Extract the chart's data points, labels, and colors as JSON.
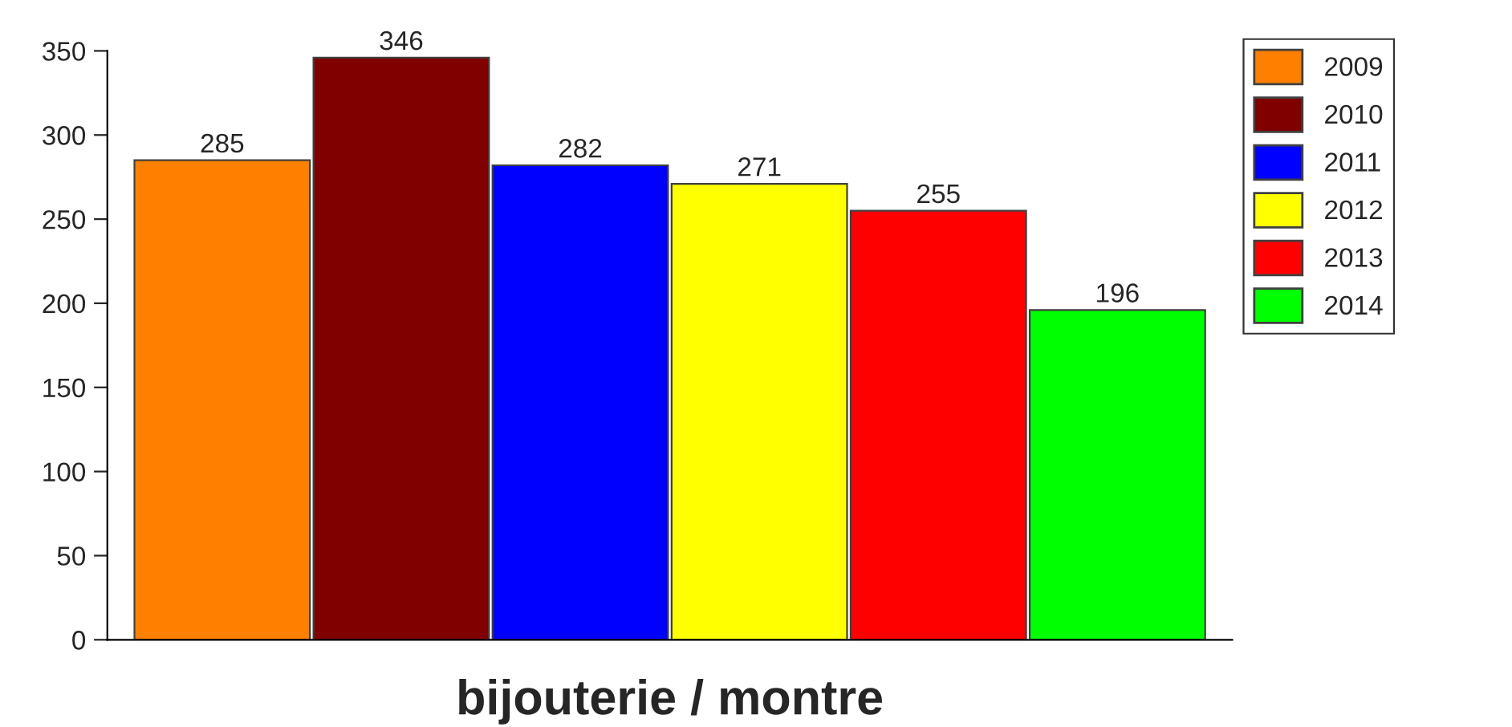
{
  "chart_data": {
    "type": "bar",
    "xlabel": "bijouterie / montre",
    "categories": [
      null
    ],
    "series": [
      {
        "name": "2009",
        "color": "#ff8000",
        "values": [
          285
        ]
      },
      {
        "name": "2010",
        "color": "#800000",
        "values": [
          346
        ]
      },
      {
        "name": "2011",
        "color": "#0000ff",
        "values": [
          282
        ]
      },
      {
        "name": "2012",
        "color": "#ffff00",
        "values": [
          271
        ]
      },
      {
        "name": "2013",
        "color": "#ff0000",
        "values": [
          255
        ]
      },
      {
        "name": "2014",
        "color": "#00ff00",
        "values": [
          196
        ]
      }
    ],
    "ylim": [
      0,
      350
    ],
    "yticks": [
      0,
      50,
      100,
      150,
      200,
      250,
      300,
      350
    ],
    "data_labels": true,
    "grid": false,
    "legend": "top right"
  }
}
